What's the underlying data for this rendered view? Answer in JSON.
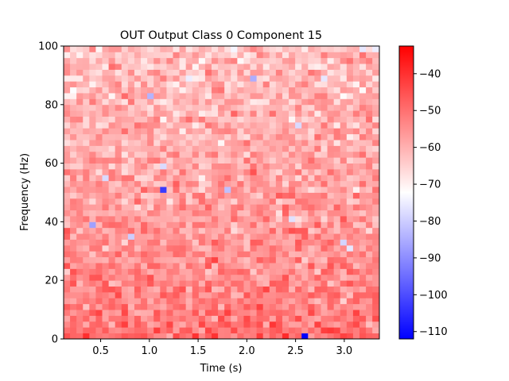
{
  "chart_data": {
    "type": "heatmap",
    "title": "OUT Output Class 0 Component 15",
    "xlabel": "Time (s)",
    "ylabel": "Frequency (Hz)",
    "xlim": [
      0.12,
      3.36
    ],
    "ylim": [
      0,
      100
    ],
    "x_ticks": [
      {
        "value": 0.5,
        "label": "0.5"
      },
      {
        "value": 1.0,
        "label": "1.0"
      },
      {
        "value": 1.5,
        "label": "1.5"
      },
      {
        "value": 2.0,
        "label": "2.0"
      },
      {
        "value": 2.5,
        "label": "2.5"
      },
      {
        "value": 3.0,
        "label": "3.0"
      }
    ],
    "y_ticks": [
      {
        "value": 0,
        "label": "0"
      },
      {
        "value": 20,
        "label": "20"
      },
      {
        "value": 40,
        "label": "40"
      },
      {
        "value": 60,
        "label": "60"
      },
      {
        "value": 80,
        "label": "80"
      },
      {
        "value": 100,
        "label": "100"
      }
    ],
    "grid": {
      "cols": 49,
      "rows": 50,
      "cell_x": 0.066,
      "cell_y": 2.0
    },
    "colormap": "bwr",
    "colorbar": {
      "vmin": -112,
      "vmax": -32.5,
      "ticks": [
        {
          "value": -40,
          "label": "−40"
        },
        {
          "value": -50,
          "label": "−50"
        },
        {
          "value": -60,
          "label": "−60"
        },
        {
          "value": -70,
          "label": "−70"
        },
        {
          "value": -80,
          "label": "−80"
        },
        {
          "value": -90,
          "label": "−90"
        },
        {
          "value": -100,
          "label": "−100"
        },
        {
          "value": -110,
          "label": "−110"
        }
      ]
    },
    "profile": {
      "high_freq_mean": -62,
      "low_freq_mean": -50,
      "noise": 7
    },
    "notable_cells": [
      {
        "t": 2.62,
        "f": 1.0,
        "value": -112
      },
      {
        "t": 1.14,
        "f": 51.0,
        "value": -103
      },
      {
        "t": 0.44,
        "f": 38.0,
        "value": -87
      },
      {
        "t": 2.06,
        "f": 89.0,
        "value": -85
      },
      {
        "t": 0.98,
        "f": 83.0,
        "value": -84
      },
      {
        "t": 1.8,
        "f": 50.0,
        "value": -82
      },
      {
        "t": 0.8,
        "f": 35.0,
        "value": -80
      },
      {
        "t": 3.02,
        "f": 32.0,
        "value": -79
      },
      {
        "t": 2.56,
        "f": 72.0,
        "value": -78
      },
      {
        "t": 0.58,
        "f": 54.0,
        "value": -78
      },
      {
        "t": 1.12,
        "f": 59.0,
        "value": -78
      },
      {
        "t": 2.44,
        "f": 41.0,
        "value": -77
      },
      {
        "t": 3.2,
        "f": 99.0,
        "value": -76
      },
      {
        "t": 2.8,
        "f": 89.0,
        "value": -76
      },
      {
        "t": 3.08,
        "f": 31.0,
        "value": -76
      },
      {
        "t": 1.42,
        "f": 89.0,
        "value": -75
      },
      {
        "t": 3.3,
        "f": 99.0,
        "value": -75
      }
    ]
  }
}
